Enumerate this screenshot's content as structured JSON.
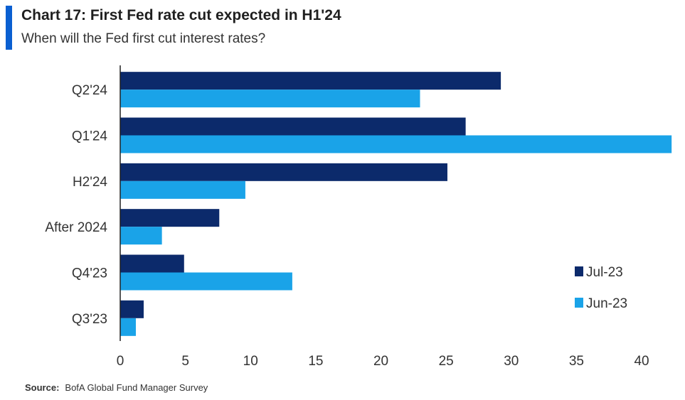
{
  "header": {
    "accent_color": "#0a5fd1",
    "title": "Chart 17: First Fed rate cut expected in H1'24",
    "subtitle": "When will the Fed first cut interest rates?"
  },
  "source": {
    "label": "Source:",
    "text": "BofA Global Fund Manager Survey"
  },
  "chart_data": {
    "type": "bar",
    "orientation": "horizontal",
    "categories": [
      "Q2'24",
      "Q1'24",
      "H2'24",
      "After 2024",
      "Q4'23",
      "Q3'23"
    ],
    "series": [
      {
        "name": "Jul-23",
        "color": "#0c2a6b",
        "values": [
          29.2,
          26.5,
          25.1,
          7.6,
          4.9,
          1.8
        ]
      },
      {
        "name": "Jun-23",
        "color": "#1aa3e8",
        "values": [
          23.0,
          42.3,
          9.6,
          3.2,
          13.2,
          1.2
        ]
      }
    ],
    "xticks": [
      0,
      5,
      10,
      15,
      20,
      25,
      30,
      35,
      40
    ],
    "xlim": [
      0,
      43
    ],
    "grid": false,
    "legend_position": "bottom-right"
  }
}
